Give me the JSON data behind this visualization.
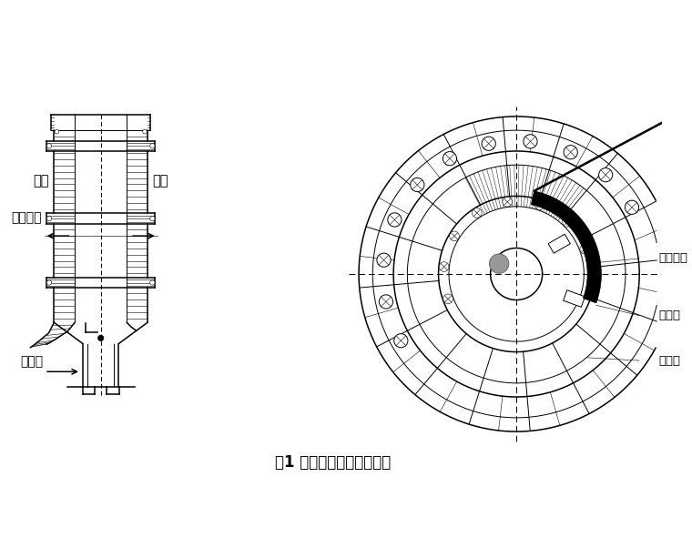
{
  "title": "图1 隔仓板调控原理示意图",
  "title_fontsize": 12,
  "bg_color": "#ffffff",
  "line_color": "#000000",
  "label_yicang": "一仓",
  "label_ercang": "二仓",
  "label_liuliu": "料流方向",
  "label_zhongxinfeng": "中心风",
  "label_liuliu_right": "料流方向",
  "label_xieliaokou": "卸料口",
  "label_yangliaoban": "扬料板"
}
